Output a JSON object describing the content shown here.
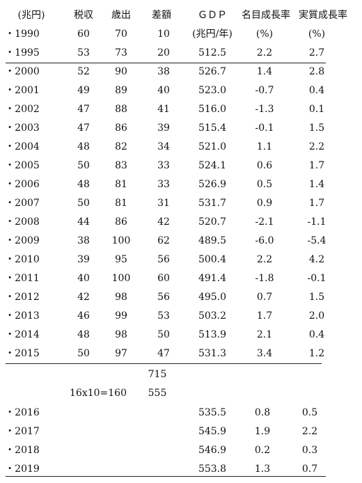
{
  "header": {
    "row1": [
      "(兆円)",
      "税収",
      "歳出",
      "差額",
      "ＧＤＰ",
      "名目成長率",
      "実質成長率"
    ],
    "row2": [
      "(兆円/年)",
      "(%)",
      "(%)"
    ]
  },
  "rows": [
    [
      "・1990",
      "60",
      "70",
      "10",
      "",
      "",
      ""
    ],
    [
      "・1995",
      "53",
      "73",
      "20",
      "512.5",
      "2.2",
      "2.7"
    ],
    [
      "・2000",
      "52",
      "90",
      "38",
      "526.7",
      "1.4",
      "2.8"
    ],
    [
      "・2001",
      "49",
      "89",
      "40",
      "523.0",
      "-0.7",
      "0.4"
    ],
    [
      "・2002",
      "47",
      "88",
      "41",
      "516.0",
      "-1.3",
      "0.1"
    ],
    [
      "・2003",
      "47",
      "86",
      "39",
      "515.4",
      "-0.1",
      "1.5"
    ],
    [
      "・2004",
      "48",
      "82",
      "34",
      "521.0",
      "1.1",
      "2.2"
    ],
    [
      "・2005",
      "50",
      "83",
      "33",
      "524.1",
      "0.6",
      "1.7"
    ],
    [
      "・2006",
      "48",
      "81",
      "33",
      "526.9",
      "0.5",
      "1.4"
    ],
    [
      "・2007",
      "50",
      "81",
      "31",
      "531.7",
      "0.9",
      "1.7"
    ],
    [
      "・2008",
      "44",
      "86",
      "42",
      "520.7",
      "-2.1",
      "-1.1"
    ],
    [
      "・2009",
      "38",
      "100",
      "62",
      "489.5",
      "-6.0",
      "-5.4"
    ],
    [
      "・2010",
      "39",
      "95",
      "56",
      "500.4",
      "2.2",
      "4.2"
    ],
    [
      "・2011",
      "40",
      "100",
      "60",
      "491.4",
      "-1.8",
      "-0.1"
    ],
    [
      "・2012",
      "42",
      "98",
      "56",
      "495.0",
      "0.7",
      "1.5"
    ],
    [
      "・2013",
      "46",
      "99",
      "53",
      "503.2",
      "1.7",
      "2.0"
    ],
    [
      "・2014",
      "48",
      "98",
      "50",
      "513.9",
      "2.1",
      "0.4"
    ],
    [
      "・2015",
      "50",
      "97",
      "47",
      "531.3",
      "3.4",
      "1.2"
    ]
  ],
  "notes": {
    "sum": "715",
    "calc": "16x10=160",
    "diff": "555"
  },
  "later_rows": [
    [
      "・2016",
      "535.5",
      "0.8",
      "0.5"
    ],
    [
      "・2017",
      "545.9",
      "1.9",
      "2.2"
    ],
    [
      "・2018",
      "546.9",
      "0.2",
      "0.3"
    ],
    [
      "・2019",
      "553.8",
      "1.3",
      "0.7"
    ]
  ]
}
